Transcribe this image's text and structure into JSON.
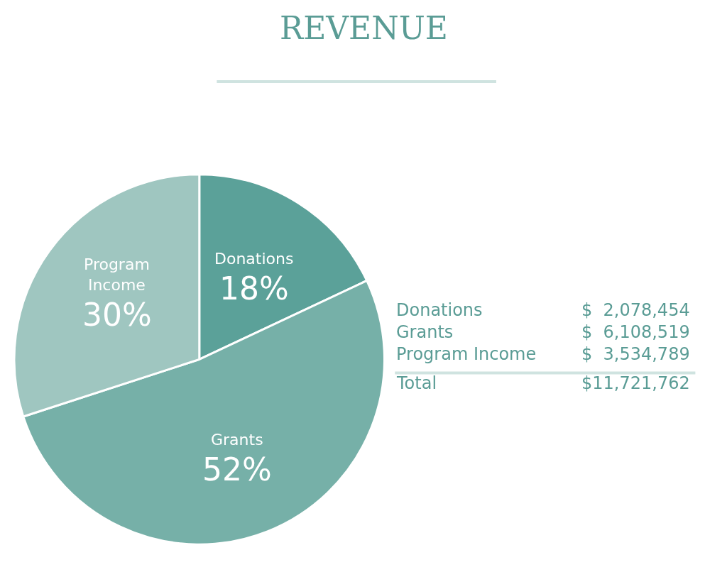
{
  "chart_data": {
    "type": "pie",
    "title": "REVENUE",
    "categories": [
      "Donations",
      "Grants",
      "Program Income"
    ],
    "values": [
      18,
      52,
      30
    ],
    "colors": [
      "#5ba199",
      "#76b0a8",
      "#9fc6c0"
    ],
    "value_labels": [
      "18%",
      "52%",
      "30%"
    ],
    "legend": false,
    "annotations": [
      "Donations",
      "$  2,078,454",
      "Grants",
      "$  6,108,519",
      "Program Income",
      "$  3,534,789",
      "Total",
      "$11,721,762"
    ]
  }
}
